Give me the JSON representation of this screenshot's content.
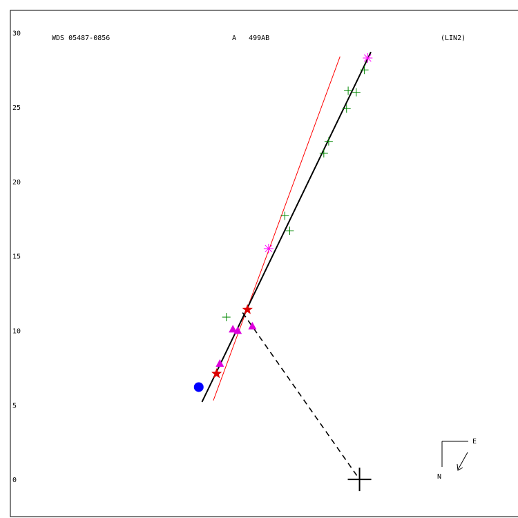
{
  "header": {
    "left": "WDS 05487-0856",
    "center": "A   499AB",
    "right": "(LIN2)"
  },
  "compass": {
    "east_label": "E",
    "north_label": "N"
  },
  "chart_data": {
    "type": "scatter",
    "title": "",
    "xlabel": "",
    "ylabel": "",
    "xlim": [
      -21.5,
      9.8
    ],
    "ylim": [
      -2.5,
      31.5
    ],
    "y_ticks": [
      0,
      5,
      10,
      15,
      20,
      25,
      30
    ],
    "grid": false,
    "colors": {
      "micrometric": "#008800",
      "speckle": "#dd00dd",
      "magenta_star": "#ff00ff",
      "red_star": "#dd0000",
      "blue_point": "#0000ff",
      "orbit": "#000000",
      "alt_orbit": "#ff0000"
    },
    "primary": {
      "x": 0,
      "y": 0
    },
    "orbit_line": [
      [
        -9.7,
        5.2
      ],
      [
        0.7,
        28.7
      ]
    ],
    "alt_orbit_line": [
      [
        -9.0,
        5.3
      ],
      [
        -1.2,
        28.4
      ]
    ],
    "node_line": [
      [
        -7.2,
        11.2
      ],
      [
        0,
        0
      ]
    ],
    "micrometric_plus": [
      [
        -8.2,
        10.9
      ],
      [
        -4.6,
        17.7
      ],
      [
        -4.3,
        16.7
      ],
      [
        -2.2,
        21.9
      ],
      [
        -1.9,
        22.7
      ],
      [
        -0.8,
        24.9
      ],
      [
        -0.7,
        26.1
      ],
      [
        -0.2,
        26.0
      ],
      [
        0.3,
        27.5
      ]
    ],
    "speckle_triangles": [
      [
        -8.6,
        7.8
      ],
      [
        -7.8,
        10.1
      ],
      [
        -7.5,
        10.0
      ],
      [
        -6.6,
        10.3
      ]
    ],
    "magenta_stars": [
      [
        -5.6,
        15.5
      ],
      [
        0.5,
        28.3
      ]
    ],
    "red_stars": [
      [
        -8.8,
        7.1
      ],
      [
        -6.9,
        11.4
      ]
    ],
    "blue_circles": [
      [
        -9.9,
        6.2
      ]
    ]
  }
}
